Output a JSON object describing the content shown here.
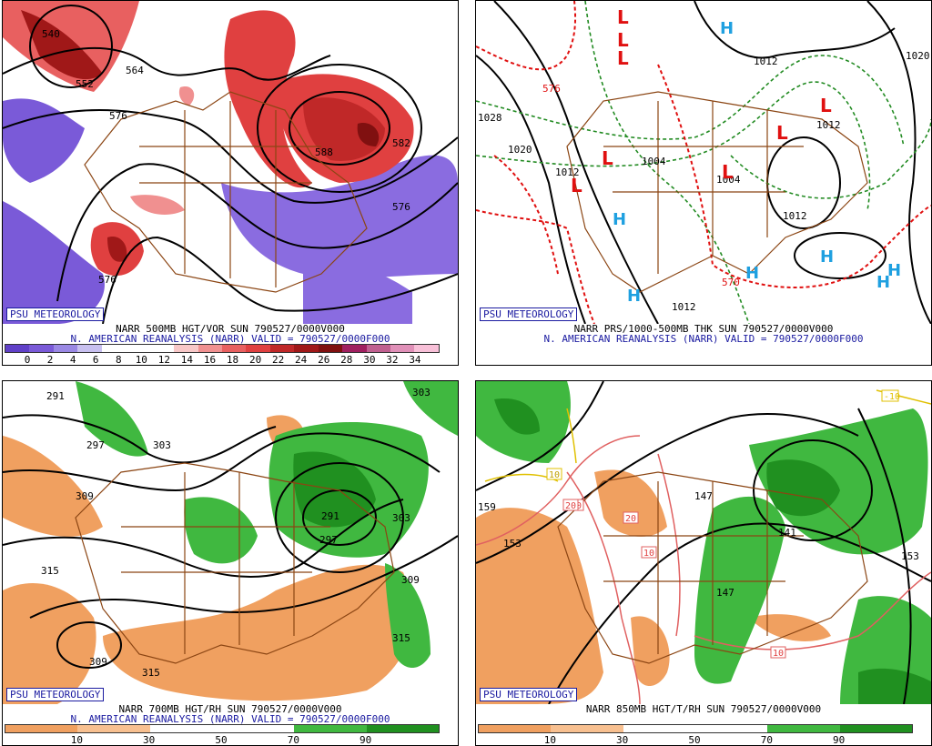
{
  "badge_text": "PSU METEOROLOGY",
  "panels": [
    {
      "caption1": "NARR 500MB HGT/VOR SUN 790527/0000V000",
      "caption2": "N. AMERICAN REANALYSIS (NARR) VALID = 790527/0000F000",
      "scale_labels": [
        "0",
        "2",
        "4",
        "6",
        "8",
        "10",
        "12",
        "14",
        "16",
        "18",
        "20",
        "22",
        "24",
        "26",
        "28",
        "30",
        "32",
        "34"
      ],
      "scale_colors": [
        "#6040c8",
        "#7a5ad8",
        "#9a88e4",
        "#c8c0f0",
        "#ffffff",
        "#ffffff",
        "#ffffff",
        "#f8c8c8",
        "#f09090",
        "#e86060",
        "#e04040",
        "#c02828",
        "#a01818",
        "#801010",
        "#a02060",
        "#c06090",
        "#e090b8",
        "#f8c0d8"
      ],
      "contour_labels": [
        "540",
        "564",
        "552",
        "576",
        "588",
        "582",
        "576",
        "576"
      ]
    },
    {
      "caption1": "NARR PRS/1000-500MB THK SUN 790527/0000V000",
      "caption2": "N. AMERICAN REANALYSIS (NARR) VALID = 790527/0000F000",
      "contour_labels": [
        "1028",
        "1020",
        "1012",
        "1012",
        "1004",
        "1012",
        "1004",
        "1012",
        "1012",
        "1020",
        "576",
        "570"
      ],
      "symbols_low": [
        "L",
        "L",
        "L",
        "L",
        "L",
        "L",
        "L",
        "L"
      ],
      "symbols_high": [
        "H",
        "H",
        "H",
        "H",
        "H",
        "H",
        "H"
      ]
    },
    {
      "caption1": "NARR 700MB HGT/RH SUN 790527/0000V000",
      "caption2": "N. AMERICAN REANALYSIS (NARR) VALID = 790527/0000F000",
      "scale_labels": [
        "10",
        "30",
        "50",
        "70",
        "90"
      ],
      "scale_colors": [
        "#f0a060",
        "#f8c090",
        "#ffffff",
        "#ffffff",
        "#40b840",
        "#209020"
      ],
      "contour_labels": [
        "291",
        "297",
        "303",
        "309",
        "315",
        "291",
        "297",
        "303",
        "309",
        "315",
        "309",
        "315",
        "303"
      ]
    },
    {
      "caption1": "NARR 850MB HGT/T/RH SUN 790527/0000V000",
      "scale_labels": [
        "10",
        "30",
        "50",
        "70",
        "90"
      ],
      "scale_colors": [
        "#f0a060",
        "#f8c090",
        "#ffffff",
        "#ffffff",
        "#40b840",
        "#209020"
      ],
      "contour_labels": [
        "159",
        "153",
        "147",
        "147",
        "141",
        "153",
        "-10",
        "10",
        "20",
        "20",
        "20",
        "10",
        "10"
      ]
    }
  ]
}
